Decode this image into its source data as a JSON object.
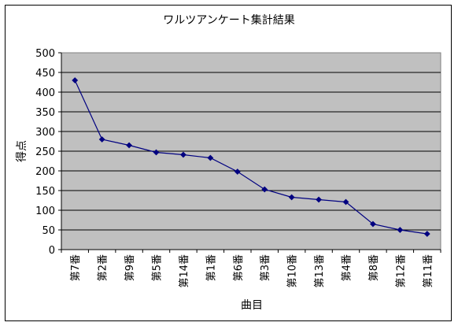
{
  "chart_data": {
    "type": "line",
    "title": "ワルツアンケート集計結果",
    "xlabel": "曲目",
    "ylabel": "得点",
    "ylim": [
      0,
      500
    ],
    "y_ticks": [
      0,
      50,
      100,
      150,
      200,
      250,
      300,
      350,
      400,
      450,
      500
    ],
    "grid": true,
    "plot_background": "#c0c0c0",
    "line_color": "#000080",
    "categories": [
      "第7番",
      "第2番",
      "第9番",
      "第5番",
      "第14番",
      "第1番",
      "第6番",
      "第3番",
      "第10番",
      "第13番",
      "第4番",
      "第8番",
      "第12番",
      "第11番"
    ],
    "series": [
      {
        "values": [
          430,
          280,
          265,
          247,
          241,
          233,
          198,
          153,
          133,
          127,
          121,
          65,
          50,
          40
        ]
      }
    ]
  }
}
